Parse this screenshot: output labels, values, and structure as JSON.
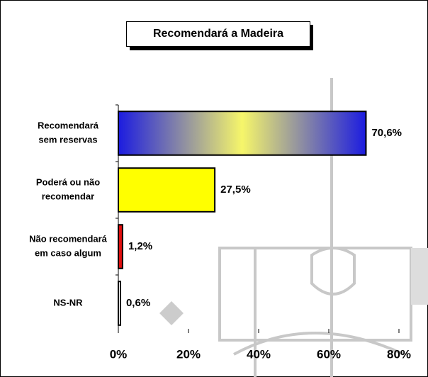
{
  "chart_data": {
    "type": "barh",
    "title": "Recomendará a Madeira",
    "categories": [
      [
        "Recomendará",
        "sem reservas"
      ],
      [
        "Poderá ou não",
        "recomendar"
      ],
      [
        "Não recomendará",
        "em caso algum"
      ],
      [
        "NS-NR"
      ]
    ],
    "values": [
      70.6,
      27.5,
      1.2,
      0.6
    ],
    "value_labels": [
      "70,6%",
      "27,5%",
      "1,2%",
      "0,6%"
    ],
    "colors": [
      [
        "#1c1ce0",
        "#f6f66a",
        "#1c1ce0"
      ],
      "#ffff00",
      "#e01010",
      "#ffffff"
    ],
    "xlim": [
      0,
      80
    ],
    "xticks": [
      {
        "value": 0,
        "label": "0%"
      },
      {
        "value": 20,
        "label": "20%"
      },
      {
        "value": 40,
        "label": "40%"
      },
      {
        "value": 60,
        "label": "60%"
      },
      {
        "value": 80,
        "label": "80%"
      }
    ]
  }
}
